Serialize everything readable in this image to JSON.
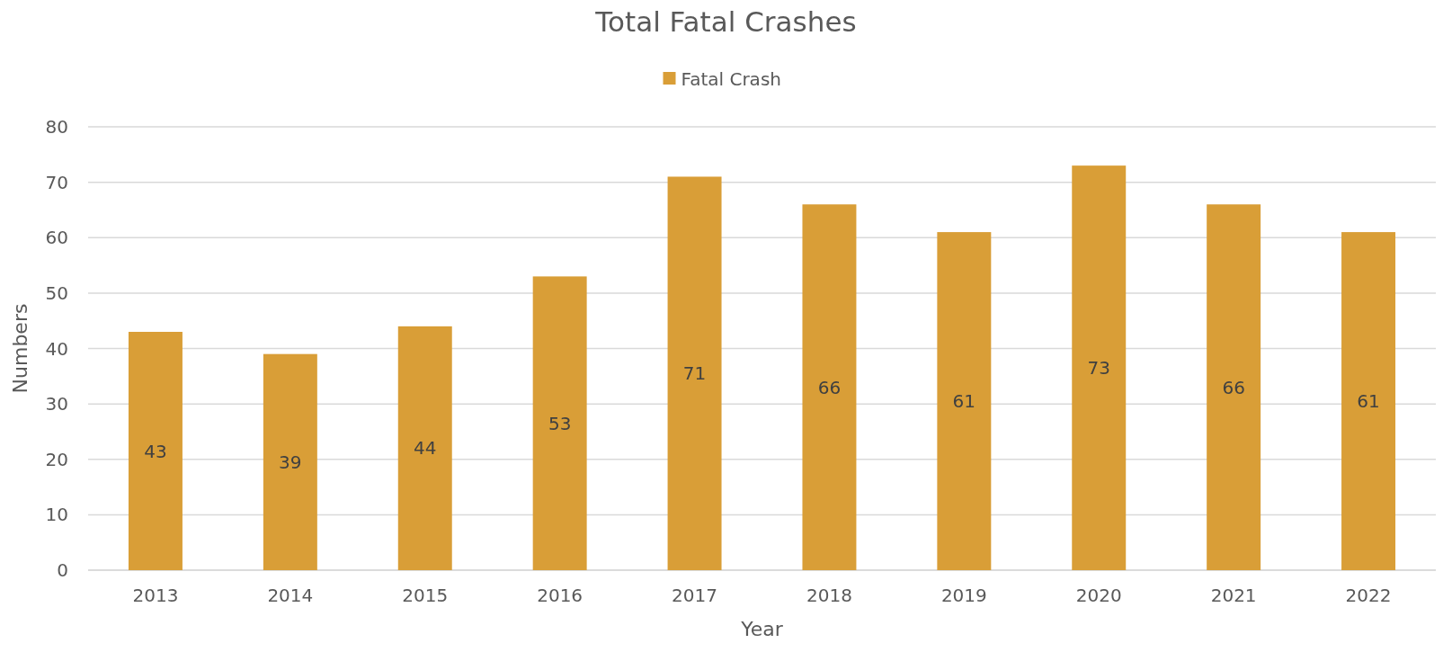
{
  "chart_data": {
    "type": "bar",
    "title": "Total Fatal Crashes",
    "xlabel": "Year",
    "ylabel": "Numbers",
    "categories": [
      "2013",
      "2014",
      "2015",
      "2016",
      "2017",
      "2018",
      "2019",
      "2020",
      "2021",
      "2022"
    ],
    "series": [
      {
        "name": "Fatal Crash",
        "color": "#d99e37",
        "values": [
          43,
          39,
          44,
          53,
          71,
          66,
          61,
          73,
          66,
          61
        ]
      }
    ],
    "ylim": [
      0,
      80
    ],
    "yticks": [
      0,
      10,
      20,
      30,
      40,
      50,
      60,
      70,
      80
    ],
    "grid": "y",
    "legend": "top",
    "data_labels": true
  }
}
